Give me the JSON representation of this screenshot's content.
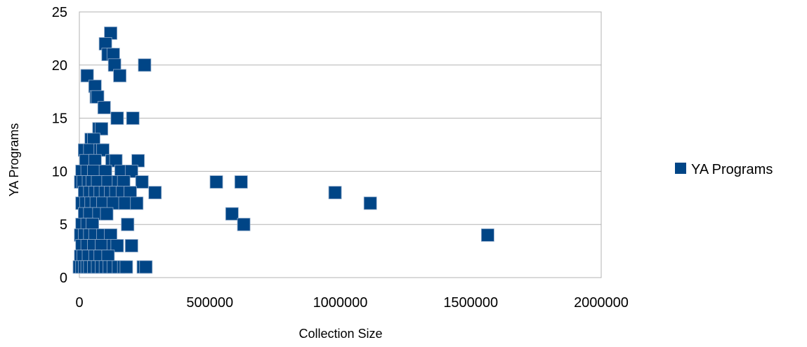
{
  "chart_data": {
    "type": "scatter",
    "xlabel": "Collection Size",
    "ylabel": "YA Programs",
    "xlim": [
      0,
      2000000
    ],
    "ylim": [
      0,
      25
    ],
    "x_ticks": [
      0,
      500000,
      1000000,
      1500000,
      2000000
    ],
    "x_tick_labels": [
      "0",
      "500000",
      "1000000",
      "1500000",
      "2000000"
    ],
    "y_ticks": [
      0,
      5,
      10,
      15,
      20,
      25
    ],
    "y_tick_labels": [
      "0",
      "5",
      "10",
      "15",
      "20",
      "25"
    ],
    "grid": "horizontal",
    "legend_position": "right",
    "series": [
      {
        "name": "YA Programs",
        "color": "#004586",
        "marker": "square",
        "points": [
          [
            120000,
            23
          ],
          [
            100000,
            22
          ],
          [
            110000,
            21
          ],
          [
            130000,
            21
          ],
          [
            135000,
            20
          ],
          [
            250000,
            20
          ],
          [
            30000,
            19
          ],
          [
            155000,
            19
          ],
          [
            60000,
            18
          ],
          [
            65000,
            17
          ],
          [
            70000,
            17
          ],
          [
            95000,
            16
          ],
          [
            145000,
            15
          ],
          [
            205000,
            15
          ],
          [
            75000,
            14
          ],
          [
            85000,
            14
          ],
          [
            45000,
            13
          ],
          [
            55000,
            13
          ],
          [
            20000,
            12
          ],
          [
            40000,
            12
          ],
          [
            80000,
            12
          ],
          [
            90000,
            12
          ],
          [
            25000,
            11
          ],
          [
            60000,
            11
          ],
          [
            125000,
            11
          ],
          [
            140000,
            11
          ],
          [
            225000,
            11
          ],
          [
            10000,
            10
          ],
          [
            30000,
            10
          ],
          [
            55000,
            10
          ],
          [
            100000,
            10
          ],
          [
            160000,
            10
          ],
          [
            200000,
            10
          ],
          [
            5000,
            9
          ],
          [
            15000,
            9
          ],
          [
            35000,
            9
          ],
          [
            50000,
            9
          ],
          [
            70000,
            9
          ],
          [
            110000,
            9
          ],
          [
            150000,
            9
          ],
          [
            170000,
            9
          ],
          [
            240000,
            9
          ],
          [
            525000,
            9
          ],
          [
            620000,
            9
          ],
          [
            20000,
            8
          ],
          [
            40000,
            8
          ],
          [
            60000,
            8
          ],
          [
            80000,
            8
          ],
          [
            100000,
            8
          ],
          [
            120000,
            8
          ],
          [
            140000,
            8
          ],
          [
            165000,
            8
          ],
          [
            195000,
            8
          ],
          [
            290000,
            8
          ],
          [
            980000,
            8
          ],
          [
            10000,
            7
          ],
          [
            25000,
            7
          ],
          [
            45000,
            7
          ],
          [
            65000,
            7
          ],
          [
            90000,
            7
          ],
          [
            130000,
            7
          ],
          [
            175000,
            7
          ],
          [
            220000,
            7
          ],
          [
            1115000,
            7
          ],
          [
            20000,
            6
          ],
          [
            40000,
            6
          ],
          [
            75000,
            6
          ],
          [
            105000,
            6
          ],
          [
            585000,
            6
          ],
          [
            10000,
            5
          ],
          [
            30000,
            5
          ],
          [
            50000,
            5
          ],
          [
            185000,
            5
          ],
          [
            630000,
            5
          ],
          [
            5000,
            4
          ],
          [
            20000,
            4
          ],
          [
            40000,
            4
          ],
          [
            60000,
            4
          ],
          [
            90000,
            4
          ],
          [
            120000,
            4
          ],
          [
            1565000,
            4
          ],
          [
            10000,
            3
          ],
          [
            30000,
            3
          ],
          [
            55000,
            3
          ],
          [
            85000,
            3
          ],
          [
            130000,
            3
          ],
          [
            145000,
            3
          ],
          [
            200000,
            3
          ],
          [
            5000,
            2
          ],
          [
            15000,
            2
          ],
          [
            35000,
            2
          ],
          [
            60000,
            2
          ],
          [
            80000,
            2
          ],
          [
            110000,
            2
          ],
          [
            0,
            1
          ],
          [
            10000,
            1
          ],
          [
            20000,
            1
          ],
          [
            30000,
            1
          ],
          [
            40000,
            1
          ],
          [
            55000,
            1
          ],
          [
            70000,
            1
          ],
          [
            85000,
            1
          ],
          [
            100000,
            1
          ],
          [
            115000,
            1
          ],
          [
            130000,
            1
          ],
          [
            150000,
            1
          ],
          [
            170000,
            1
          ],
          [
            180000,
            1
          ],
          [
            245000,
            1
          ],
          [
            255000,
            1
          ]
        ]
      }
    ]
  }
}
